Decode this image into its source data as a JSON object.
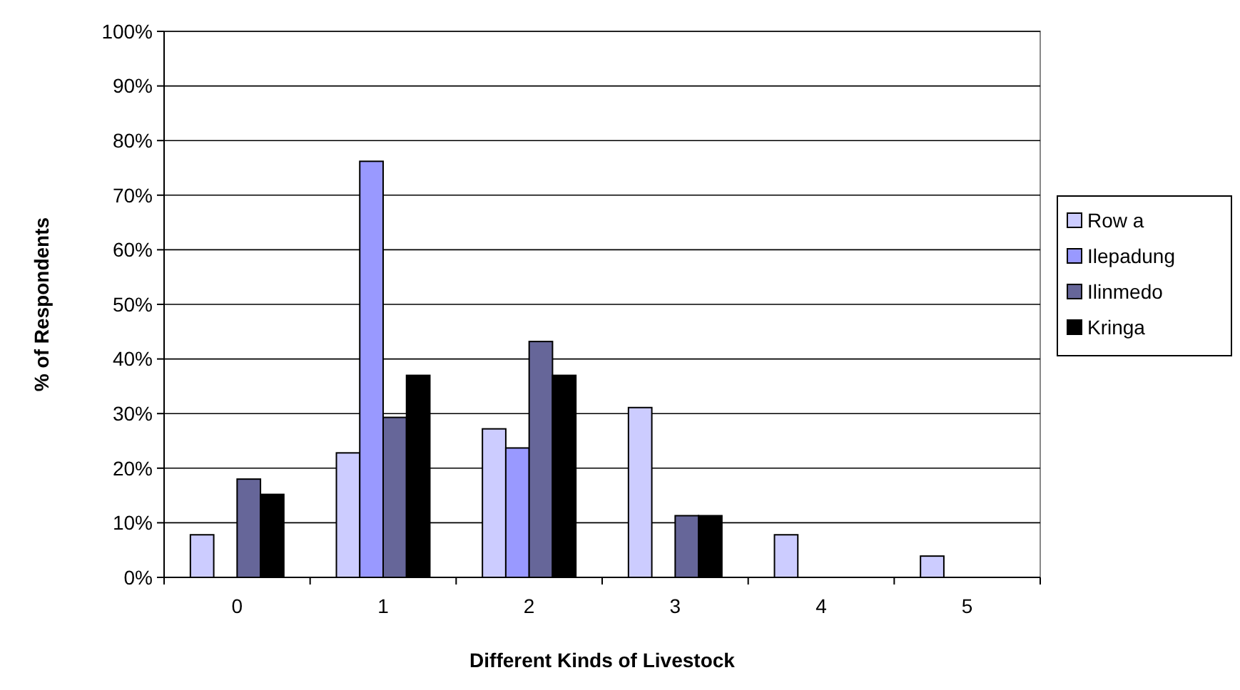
{
  "chart_data": {
    "type": "bar",
    "xlabel": "Different Kinds of Livestock",
    "ylabel": "% of Respondents",
    "categories": [
      "0",
      "1",
      "2",
      "3",
      "4",
      "5"
    ],
    "series": [
      {
        "name": "Row a",
        "color": "#ccccff",
        "values": [
          7.8,
          22.8,
          27.2,
          31.1,
          7.8,
          3.9
        ]
      },
      {
        "name": "Ilepadung",
        "color": "#9999ff",
        "values": [
          0,
          76.2,
          23.7,
          0,
          0,
          0
        ]
      },
      {
        "name": "Ilinmedo",
        "color": "#666699",
        "values": [
          18,
          29.3,
          43.2,
          11.3,
          0,
          0
        ]
      },
      {
        "name": "Kringa",
        "color": "#000000",
        "values": [
          15.2,
          37,
          37,
          11.3,
          0,
          0
        ]
      }
    ],
    "ylim": [
      0,
      100
    ],
    "yticks": [
      {
        "value": 0,
        "label": "0%"
      },
      {
        "value": 10,
        "label": "10%"
      },
      {
        "value": 20,
        "label": "20%"
      },
      {
        "value": 30,
        "label": "30%"
      },
      {
        "value": 40,
        "label": "40%"
      },
      {
        "value": 50,
        "label": "50%"
      },
      {
        "value": 60,
        "label": "60%"
      },
      {
        "value": 70,
        "label": "70%"
      },
      {
        "value": 80,
        "label": "80%"
      },
      {
        "value": 90,
        "label": "90%"
      },
      {
        "value": 100,
        "label": "100%"
      }
    ],
    "grid": "y",
    "legend": "right"
  }
}
